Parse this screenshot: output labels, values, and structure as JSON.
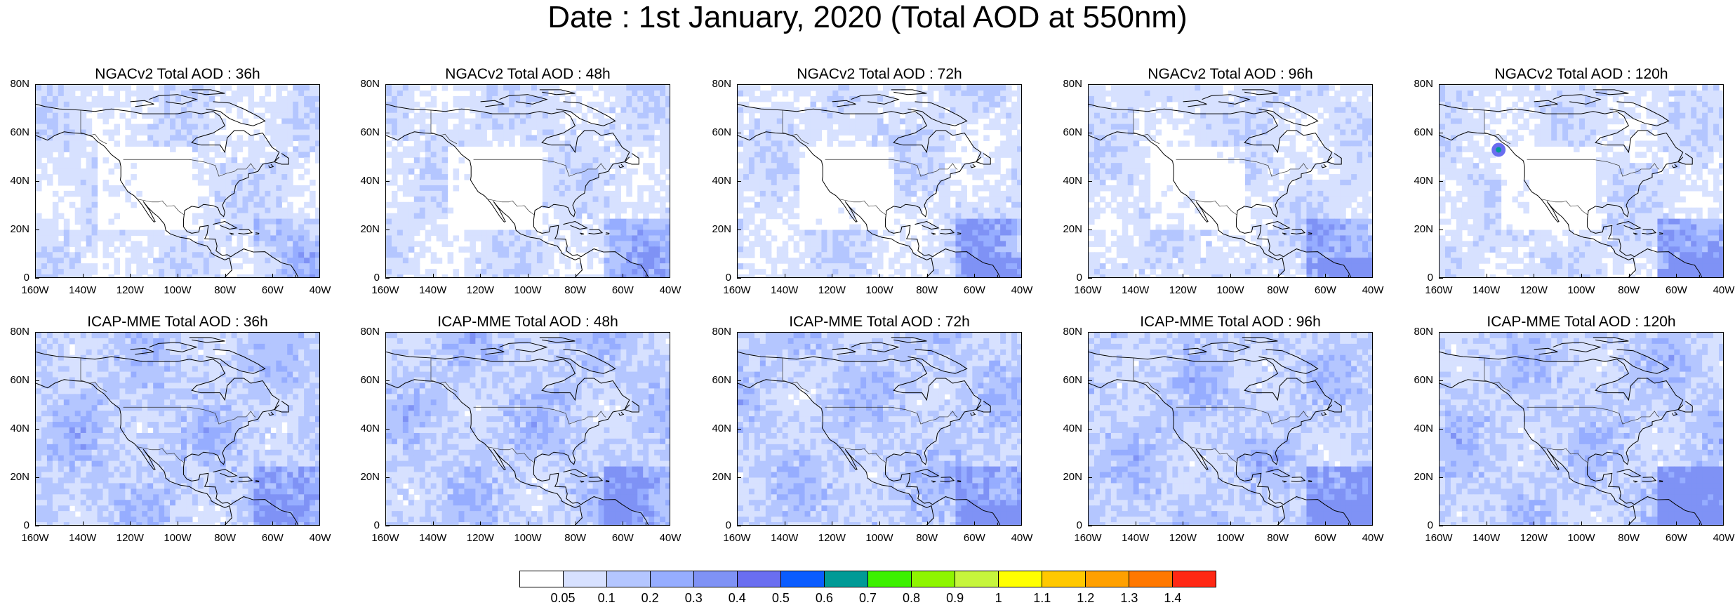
{
  "title": "Date : 1st January, 2020 (Total AOD at 550nm)",
  "y_ticks": [
    "80N",
    "60N",
    "40N",
    "20N",
    "0"
  ],
  "x_ticks": [
    "160W",
    "140W",
    "120W",
    "100W",
    "80W",
    "60W",
    "40W"
  ],
  "panels": [
    {
      "title": "NGACv2 Total AOD : 36h"
    },
    {
      "title": "NGACv2 Total AOD : 48h"
    },
    {
      "title": "NGACv2 Total AOD : 72h"
    },
    {
      "title": "NGACv2 Total AOD : 96h"
    },
    {
      "title": "NGACv2 Total AOD : 120h"
    },
    {
      "title": "ICAP-MME Total AOD : 36h"
    },
    {
      "title": "ICAP-MME Total AOD : 48h"
    },
    {
      "title": "ICAP-MME Total AOD : 72h"
    },
    {
      "title": "ICAP-MME Total AOD : 96h"
    },
    {
      "title": "ICAP-MME Total AOD : 120h"
    }
  ],
  "colorbar": {
    "colors": [
      "#ffffff",
      "#d7e1ff",
      "#b4c6ff",
      "#96adff",
      "#7f92f5",
      "#6a6ef0",
      "#0a5cff",
      "#009a96",
      "#3cf000",
      "#8ef500",
      "#c6f53c",
      "#ffff00",
      "#ffc800",
      "#ffa000",
      "#ff7800",
      "#ff2814"
    ],
    "labels": [
      "0.05",
      "0.1",
      "0.2",
      "0.3",
      "0.4",
      "0.5",
      "0.6",
      "0.7",
      "0.8",
      "0.9",
      "1",
      "1.1",
      "1.2",
      "1.3",
      "1.4"
    ]
  }
}
